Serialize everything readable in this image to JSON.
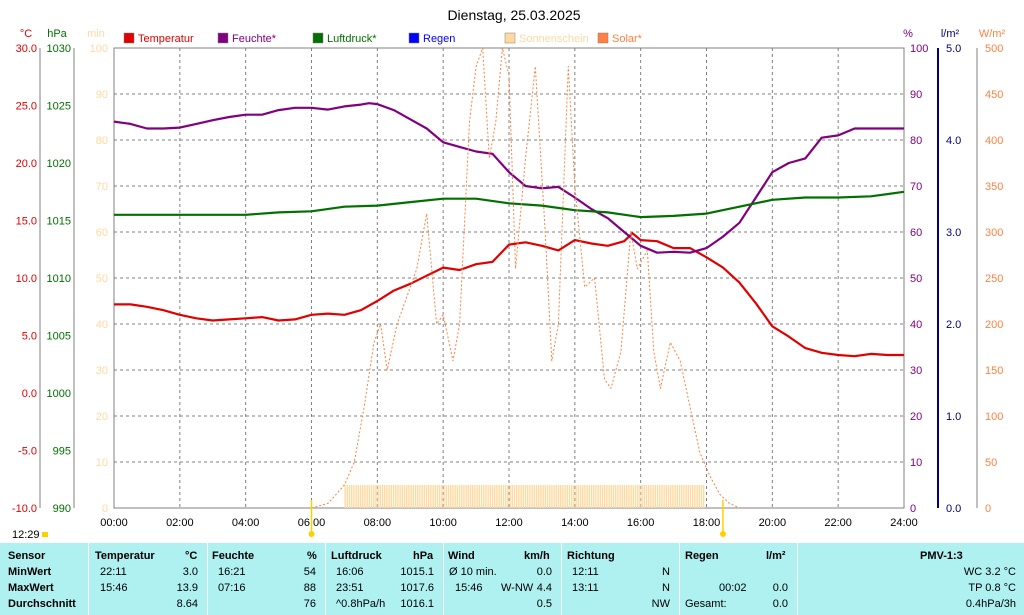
{
  "chart_data": {
    "type": "line",
    "title": "Dienstag, 25.03.2025",
    "x_ticks": [
      "00:00",
      "02:00",
      "04:00",
      "06:00",
      "08:00",
      "10:00",
      "12:00",
      "14:00",
      "16:00",
      "18:00",
      "20:00",
      "22:00",
      "24:00"
    ],
    "x_range_hours": [
      0,
      24
    ],
    "grid": true,
    "legend_position": "top",
    "legend": [
      {
        "label": "Temperatur",
        "color": "#e00000"
      },
      {
        "label": "Feuchte*",
        "color": "#800080"
      },
      {
        "label": "Luftdruck*",
        "color": "#007000"
      },
      {
        "label": "Regen",
        "color": "#0000ff"
      },
      {
        "label": "Sonnenschein",
        "color": "#ffd9a0"
      },
      {
        "label": "Solar*",
        "color": "#ff8040"
      }
    ],
    "axes": {
      "temp": {
        "unit": "°C",
        "color": "#e00000",
        "range": [
          -10,
          30
        ],
        "ticks": [
          "30.0",
          "25.0",
          "20.0",
          "15.0",
          "10.0",
          "5.0",
          "0.0",
          "-5.0",
          "-10.0"
        ]
      },
      "pressure": {
        "unit": "hPa",
        "color": "#007000",
        "range": [
          990,
          1030
        ],
        "ticks": [
          "1030",
          "1025",
          "1020",
          "1015",
          "1010",
          "1005",
          "1000",
          "995",
          "990"
        ]
      },
      "sunshine": {
        "unit": "min",
        "color": "#ffd9a0",
        "range": [
          0,
          100
        ],
        "ticks": [
          "100",
          "90",
          "80",
          "70",
          "60",
          "50",
          "40",
          "30",
          "20",
          "10",
          "0"
        ]
      },
      "humidity": {
        "unit": "%",
        "color": "#800080",
        "range": [
          0,
          100
        ],
        "ticks": [
          "100",
          "90",
          "80",
          "70",
          "60",
          "50",
          "40",
          "30",
          "20",
          "10",
          "0"
        ]
      },
      "rain": {
        "unit": "l/m²",
        "color": "#000080",
        "range": [
          0,
          5
        ],
        "ticks": [
          "5.0",
          "4.0",
          "3.0",
          "2.0",
          "1.0",
          "0.0"
        ]
      },
      "solar": {
        "unit": "W/m²",
        "color": "#ff8040",
        "range": [
          0,
          500
        ],
        "ticks": [
          "500",
          "450",
          "400",
          "350",
          "300",
          "250",
          "200",
          "150",
          "100",
          "50",
          "0"
        ]
      }
    },
    "series": [
      {
        "name": "Temperatur",
        "color": "#e00000",
        "axis": "temp",
        "points": [
          [
            0,
            7.7
          ],
          [
            0.5,
            7.7
          ],
          [
            1,
            7.5
          ],
          [
            1.5,
            7.2
          ],
          [
            2,
            6.8
          ],
          [
            2.5,
            6.5
          ],
          [
            3,
            6.3
          ],
          [
            3.5,
            6.4
          ],
          [
            4,
            6.5
          ],
          [
            4.5,
            6.6
          ],
          [
            5,
            6.3
          ],
          [
            5.5,
            6.4
          ],
          [
            6,
            6.8
          ],
          [
            6.5,
            6.9
          ],
          [
            7,
            6.8
          ],
          [
            7.5,
            7.2
          ],
          [
            8,
            8.0
          ],
          [
            8.5,
            8.9
          ],
          [
            9,
            9.5
          ],
          [
            9.5,
            10.2
          ],
          [
            10,
            10.9
          ],
          [
            10.5,
            10.7
          ],
          [
            11,
            11.2
          ],
          [
            11.5,
            11.4
          ],
          [
            12,
            12.9
          ],
          [
            12.5,
            13.1
          ],
          [
            13,
            12.8
          ],
          [
            13.5,
            12.4
          ],
          [
            14,
            13.3
          ],
          [
            14.5,
            13.0
          ],
          [
            15,
            12.8
          ],
          [
            15.5,
            13.2
          ],
          [
            15.75,
            13.9
          ],
          [
            16,
            13.3
          ],
          [
            16.5,
            13.2
          ],
          [
            17,
            12.6
          ],
          [
            17.5,
            12.6
          ],
          [
            18,
            11.8
          ],
          [
            18.5,
            10.9
          ],
          [
            19,
            9.6
          ],
          [
            19.5,
            7.8
          ],
          [
            20,
            5.8
          ],
          [
            20.5,
            4.9
          ],
          [
            21,
            3.9
          ],
          [
            21.5,
            3.5
          ],
          [
            22,
            3.3
          ],
          [
            22.5,
            3.2
          ],
          [
            23,
            3.4
          ],
          [
            23.5,
            3.3
          ],
          [
            24,
            3.3
          ]
        ]
      },
      {
        "name": "Feuchte*",
        "color": "#800080",
        "axis": "humidity",
        "points": [
          [
            0,
            84
          ],
          [
            0.5,
            83.5
          ],
          [
            1,
            82.5
          ],
          [
            1.5,
            82.5
          ],
          [
            2,
            82.7
          ],
          [
            2.5,
            83.5
          ],
          [
            3,
            84.3
          ],
          [
            3.5,
            85
          ],
          [
            4,
            85.5
          ],
          [
            4.5,
            85.5
          ],
          [
            5,
            86.5
          ],
          [
            5.5,
            87
          ],
          [
            6,
            87
          ],
          [
            6.5,
            86.6
          ],
          [
            7,
            87.3
          ],
          [
            7.5,
            87.7
          ],
          [
            7.75,
            88
          ],
          [
            8,
            87.8
          ],
          [
            8.5,
            86.5
          ],
          [
            9,
            84.5
          ],
          [
            9.5,
            82.5
          ],
          [
            10,
            79.5
          ],
          [
            10.5,
            78.5
          ],
          [
            11,
            77.5
          ],
          [
            11.5,
            77
          ],
          [
            12,
            73
          ],
          [
            12.5,
            70
          ],
          [
            13,
            69.5
          ],
          [
            13.5,
            69.8
          ],
          [
            14,
            67.5
          ],
          [
            14.5,
            65
          ],
          [
            15,
            63
          ],
          [
            15.5,
            60
          ],
          [
            16,
            57
          ],
          [
            16.5,
            55.5
          ],
          [
            17,
            55.7
          ],
          [
            17.5,
            55.5
          ],
          [
            18,
            56.5
          ],
          [
            18.5,
            59
          ],
          [
            19,
            62
          ],
          [
            19.5,
            67.5
          ],
          [
            20,
            73
          ],
          [
            20.5,
            75
          ],
          [
            21,
            76
          ],
          [
            21.5,
            80.5
          ],
          [
            22,
            81
          ],
          [
            22.5,
            82.5
          ],
          [
            23,
            82.5
          ],
          [
            23.5,
            82.5
          ],
          [
            24,
            82.5
          ]
        ]
      },
      {
        "name": "Luftdruck*",
        "color": "#007000",
        "axis": "pressure",
        "points": [
          [
            0,
            1015.5
          ],
          [
            2,
            1015.5
          ],
          [
            4,
            1015.5
          ],
          [
            5,
            1015.7
          ],
          [
            6,
            1015.8
          ],
          [
            7,
            1016.2
          ],
          [
            8,
            1016.3
          ],
          [
            9,
            1016.6
          ],
          [
            10,
            1016.9
          ],
          [
            11,
            1016.9
          ],
          [
            12,
            1016.5
          ],
          [
            13,
            1016.3
          ],
          [
            14,
            1015.9
          ],
          [
            15,
            1015.7
          ],
          [
            16,
            1015.3
          ],
          [
            17,
            1015.4
          ],
          [
            18,
            1015.6
          ],
          [
            19,
            1016.2
          ],
          [
            20,
            1016.8
          ],
          [
            21,
            1017.0
          ],
          [
            22,
            1017.0
          ],
          [
            23,
            1017.1
          ],
          [
            24,
            1017.5
          ]
        ]
      },
      {
        "name": "Solar*",
        "color": "#ff8040",
        "axis": "solar",
        "dashed": true,
        "points": [
          [
            6,
            0
          ],
          [
            6.5,
            5
          ],
          [
            7,
            25
          ],
          [
            7.3,
            50
          ],
          [
            7.6,
            110
          ],
          [
            7.9,
            180
          ],
          [
            8.1,
            200
          ],
          [
            8.3,
            150
          ],
          [
            8.6,
            200
          ],
          [
            8.9,
            230
          ],
          [
            9.2,
            260
          ],
          [
            9.5,
            320
          ],
          [
            9.8,
            200
          ],
          [
            10,
            210
          ],
          [
            10.3,
            160
          ],
          [
            10.5,
            200
          ],
          [
            10.8,
            420
          ],
          [
            11,
            480
          ],
          [
            11.2,
            500
          ],
          [
            11.4,
            380
          ],
          [
            11.6,
            420
          ],
          [
            11.8,
            500
          ],
          [
            12,
            470
          ],
          [
            12.2,
            260
          ],
          [
            12.5,
            380
          ],
          [
            12.8,
            480
          ],
          [
            13.1,
            300
          ],
          [
            13.3,
            160
          ],
          [
            13.5,
            200
          ],
          [
            13.8,
            480
          ],
          [
            14,
            350
          ],
          [
            14.3,
            240
          ],
          [
            14.6,
            250
          ],
          [
            14.9,
            140
          ],
          [
            15.1,
            130
          ],
          [
            15.4,
            170
          ],
          [
            15.7,
            300
          ],
          [
            15.9,
            260
          ],
          [
            16.2,
            280
          ],
          [
            16.4,
            170
          ],
          [
            16.6,
            130
          ],
          [
            16.9,
            180
          ],
          [
            17.2,
            160
          ],
          [
            17.5,
            110
          ],
          [
            17.8,
            60
          ],
          [
            18.1,
            35
          ],
          [
            18.4,
            15
          ],
          [
            18.7,
            5
          ],
          [
            19,
            0
          ]
        ]
      },
      {
        "name": "Sonnenschein",
        "color": "#ffd9a0",
        "axis": "sunshine",
        "type": "bar",
        "bar_range_hours": [
          7,
          17.9
        ],
        "bar_value": 5
      }
    ],
    "markers": [
      {
        "label": "12:29",
        "hour": 0.3
      },
      {
        "label": "",
        "hour": 6.0
      },
      {
        "label": "",
        "hour": 18.5
      }
    ]
  },
  "table": {
    "headers": {
      "sensor": "Sensor",
      "temperatur": "Temperatur",
      "temp_unit": "°C",
      "feuchte": "Feuchte",
      "feuchte_unit": "%",
      "luftdruck": "Luftdruck",
      "luftdruck_unit": "hPa",
      "wind": "Wind",
      "wind_unit": "km/h",
      "richtung": "Richtung",
      "regen": "Regen",
      "regen_unit": "l/m²",
      "pmv": "PMV-1:3"
    },
    "rows": [
      {
        "label": "MinWert",
        "temp_time": "22:11",
        "temp_val": "3.0",
        "hum_time": "16:21",
        "hum_val": "54",
        "press_time": "16:06",
        "press_val": "1015.1",
        "wind_desc": "Ø 10 min.",
        "wind_val": "0.0",
        "dir_time": "12:11",
        "dir_val": "N",
        "rain_time": "",
        "rain_val": "",
        "pmv_val": "WC 3.2 °C"
      },
      {
        "label": "MaxWert",
        "temp_time": "15:46",
        "temp_val": "13.9",
        "hum_time": "07:16",
        "hum_val": "88",
        "press_time": "23:51",
        "press_val": "1017.6",
        "wind_desc": "15:46",
        "wind_dir": "W-NW",
        "wind_val": "4.4",
        "dir_time": "13:11",
        "dir_val": "N",
        "rain_time": "00:02",
        "rain_val": "0.0",
        "pmv_val": "TP 0.8 °C"
      },
      {
        "label": "Durchschnitt",
        "temp_time": "",
        "temp_val": "8.64",
        "hum_time": "",
        "hum_val": "76",
        "press_time": "^0.8hPa/h",
        "press_val": "1016.1",
        "wind_desc": "",
        "wind_val": "0.5",
        "dir_time": "",
        "dir_val": "NW",
        "rain_time": "Gesamt:",
        "rain_val": "0.0",
        "pmv_val": "0.4hPa/3h"
      }
    ]
  }
}
